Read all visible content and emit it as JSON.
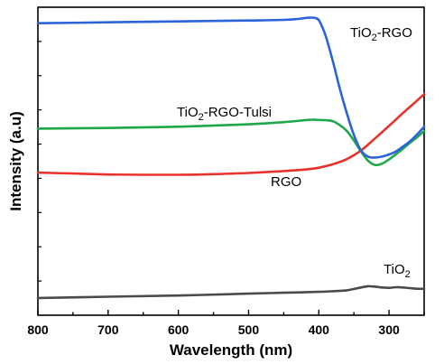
{
  "chart_data": {
    "type": "line",
    "title": "",
    "xlabel": "Wavelength (nm)",
    "ylabel": "Intensity (a.u)",
    "xlim": [
      800,
      250
    ],
    "x_reversed": true,
    "xticks": [
      800,
      700,
      600,
      500,
      400,
      300
    ],
    "yticks_labeled": false,
    "grid": false,
    "legend": "inline labels near curves",
    "series": [
      {
        "name": "TiO2-RGO",
        "label_main": "TiO",
        "label_sub": "2",
        "label_rest": "-RGO",
        "color": "#2b63d9",
        "x": [
          800,
          700,
          600,
          500,
          450,
          430,
          415,
          405,
          400,
          395,
          390,
          380,
          370,
          360,
          350,
          340,
          330,
          320,
          310,
          300,
          290,
          280,
          270,
          260,
          250
        ],
        "y": [
          0.948,
          0.951,
          0.954,
          0.957,
          0.959,
          0.962,
          0.966,
          0.965,
          0.958,
          0.935,
          0.905,
          0.825,
          0.735,
          0.655,
          0.585,
          0.535,
          0.515,
          0.512,
          0.515,
          0.522,
          0.532,
          0.548,
          0.565,
          0.587,
          0.612
        ]
      },
      {
        "name": "TiO2-RGO-Tulsi",
        "label_main": "TiO",
        "label_sub": "2",
        "label_rest": "-RGO-Tulsi",
        "color": "#1fa84a",
        "x": [
          800,
          700,
          600,
          500,
          450,
          420,
          410,
          400,
          390,
          380,
          370,
          360,
          350,
          340,
          330,
          320,
          310,
          300,
          290,
          280,
          270,
          260,
          250
        ],
        "y": [
          0.606,
          0.608,
          0.612,
          0.62,
          0.627,
          0.633,
          0.635,
          0.634,
          0.633,
          0.63,
          0.617,
          0.598,
          0.567,
          0.532,
          0.502,
          0.488,
          0.492,
          0.506,
          0.523,
          0.541,
          0.56,
          0.578,
          0.598
        ]
      },
      {
        "name": "RGO",
        "label_main": "RGO",
        "label_sub": "",
        "label_rest": "",
        "color": "#e8332c",
        "x": [
          800,
          750,
          700,
          650,
          600,
          550,
          500,
          450,
          420,
          400,
          380,
          360,
          340,
          320,
          300,
          280,
          260,
          250
        ],
        "y": [
          0.463,
          0.46,
          0.457,
          0.456,
          0.456,
          0.458,
          0.462,
          0.468,
          0.473,
          0.479,
          0.49,
          0.507,
          0.535,
          0.574,
          0.615,
          0.657,
          0.697,
          0.718
        ]
      },
      {
        "name": "TiO2",
        "label_main": "TiO",
        "label_sub": "2",
        "label_rest": "",
        "color": "#4a4a4a",
        "x": [
          800,
          700,
          600,
          500,
          450,
          400,
          380,
          360,
          340,
          330,
          320,
          310,
          300,
          290,
          280,
          270,
          260,
          250
        ],
        "y": [
          0.056,
          0.06,
          0.064,
          0.07,
          0.073,
          0.076,
          0.078,
          0.081,
          0.09,
          0.094,
          0.093,
          0.09,
          0.089,
          0.091,
          0.09,
          0.088,
          0.086,
          0.086
        ]
      }
    ]
  }
}
